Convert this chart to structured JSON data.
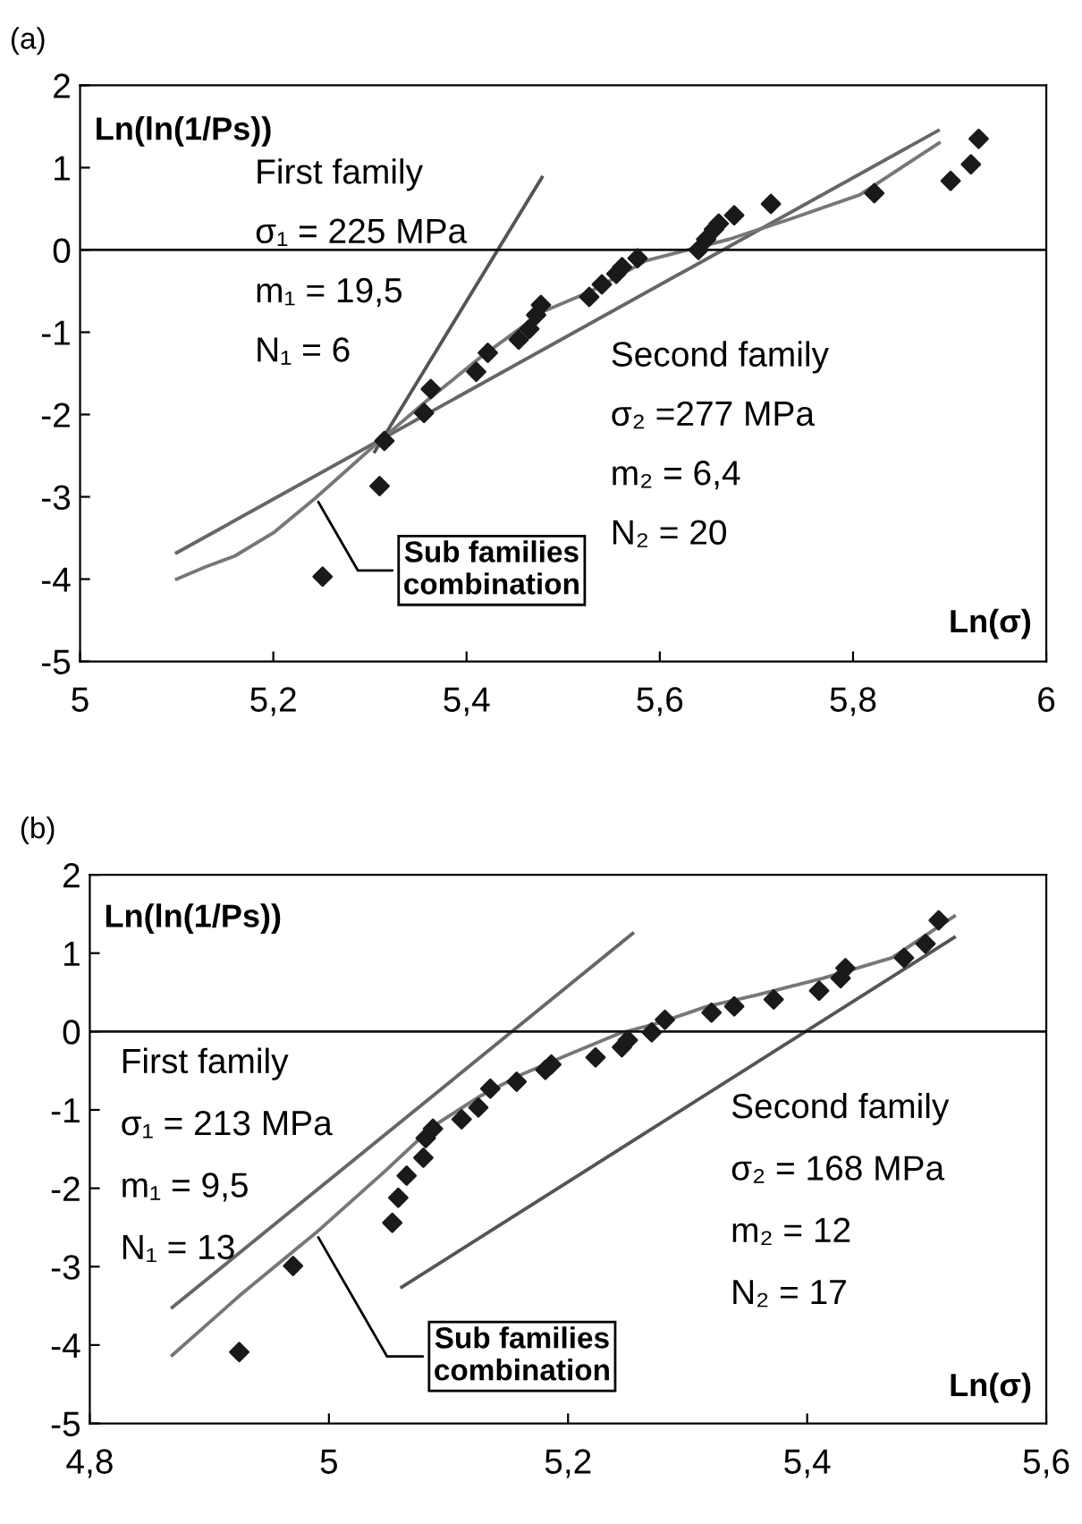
{
  "chart_data": [
    {
      "type": "scatter",
      "title": "(a)",
      "xlabel": "Ln(σ)",
      "ylabel": "Ln(ln(1/Ps))",
      "xlim": [
        5,
        6
      ],
      "xticks": [
        5,
        {
          "value": 5.2,
          "label": "5,2"
        },
        {
          "value": 5.4,
          "label": "5,4"
        },
        {
          "value": 5.6,
          "label": "5,6"
        },
        {
          "value": 5.8,
          "label": "5,8"
        },
        6
      ],
      "ylim": [
        -5,
        2
      ],
      "yticks": [
        -5,
        -4,
        -3,
        -2,
        -1,
        0,
        1,
        2
      ],
      "grid": false,
      "legend": false,
      "ref_lines": [
        {
          "axis": "y",
          "value": 0,
          "color": "#111111"
        }
      ],
      "series": [
        {
          "type": "line",
          "color": "#555555",
          "x": [
            5.305,
            5.478
          ],
          "values": [
            -2.45,
            0.88
          ]
        },
        {
          "type": "line",
          "color": "#666666",
          "x": [
            5.1,
            5.888
          ],
          "values": [
            -3.68,
            1.45
          ]
        },
        {
          "type": "line",
          "color": "#777777",
          "x": [
            5.1,
            5.13,
            5.16,
            5.201,
            5.244,
            5.312,
            5.358,
            5.415,
            5.479,
            5.529,
            5.586,
            5.629,
            5.672,
            5.736,
            5.807,
            5.889
          ],
          "values": [
            -4.0,
            -3.85,
            -3.72,
            -3.43,
            -3.01,
            -2.3,
            -1.84,
            -1.3,
            -0.75,
            -0.5,
            -0.13,
            0,
            0.13,
            0.38,
            0.67,
            1.3
          ]
        },
        {
          "marker": "diamond",
          "color": "#1a1a1a",
          "x": [
            5.251,
            5.31,
            5.315,
            5.356,
            5.363,
            5.41,
            5.422,
            5.454,
            5.465,
            5.472,
            5.477,
            5.527,
            5.54,
            5.555,
            5.561,
            5.577,
            5.64,
            5.648,
            5.656,
            5.661,
            5.677,
            5.715,
            5.822,
            5.901,
            5.922,
            5.93
          ],
          "values": [
            -3.97,
            -2.87,
            -2.32,
            -1.98,
            -1.69,
            -1.48,
            -1.25,
            -1.09,
            -0.96,
            -0.79,
            -0.67,
            -0.57,
            -0.42,
            -0.29,
            -0.21,
            -0.1,
            0.0,
            0.13,
            0.25,
            0.32,
            0.42,
            0.56,
            0.69,
            0.84,
            1.04,
            1.35
          ]
        }
      ],
      "annotations": [
        "First family",
        "σ₁ = 225 MPa",
        "m₁ = 19,5",
        "N₁ = 6",
        "Second family",
        "σ₂ =277 MPa",
        "m₂ = 6,4",
        "N₂ = 20",
        {
          "text": "Sub families\ncombination",
          "x": 5.244,
          "y": -3.01
        }
      ]
    },
    {
      "type": "scatter",
      "title": "(b)",
      "xlabel": "Ln(σ)",
      "ylabel": "Ln(ln(1/Ps))",
      "xlim": [
        4.8,
        5.6
      ],
      "xticks": [
        {
          "value": 4.8,
          "label": "4,8"
        },
        5,
        {
          "value": 5.2,
          "label": "5,2"
        },
        {
          "value": 5.4,
          "label": "5,4"
        },
        {
          "value": 5.6,
          "label": "5,6"
        }
      ],
      "ylim": [
        -5,
        2
      ],
      "yticks": [
        -5,
        -4,
        -3,
        -2,
        -1,
        0,
        1,
        2
      ],
      "grid": false,
      "legend": false,
      "ref_lines": [
        {
          "axis": "y",
          "value": 0,
          "color": "#111111"
        }
      ],
      "series": [
        {
          "type": "line",
          "color": "#666666",
          "x": [
            4.869,
            5.254
          ],
          "values": [
            -3.52,
            1.25
          ]
        },
        {
          "type": "line",
          "color": "#555555",
          "x": [
            5.061,
            5.523
          ],
          "values": [
            -3.26,
            1.2
          ]
        },
        {
          "type": "line",
          "color": "#777777",
          "x": [
            4.869,
            4.926,
            4.989,
            5.047,
            5.087,
            5.127,
            5.161,
            5.201,
            5.242,
            5.276,
            5.316,
            5.356,
            5.413,
            5.471,
            5.523
          ],
          "values": [
            -4.13,
            -3.36,
            -2.57,
            -1.78,
            -1.21,
            -0.82,
            -0.55,
            -0.29,
            -0.03,
            0.11,
            0.32,
            0.46,
            0.68,
            0.94,
            1.47
          ]
        },
        {
          "marker": "diamond",
          "color": "#1a1a1a",
          "x": [
            4.925,
            4.97,
            5.053,
            5.058,
            5.065,
            5.079,
            5.081,
            5.087,
            5.111,
            5.125,
            5.135,
            5.157,
            5.181,
            5.186,
            5.223,
            5.245,
            5.25,
            5.27,
            5.281,
            5.32,
            5.339,
            5.372,
            5.41,
            5.428,
            5.432,
            5.481,
            5.499,
            5.51
          ],
          "values": [
            -4.09,
            -2.99,
            -2.44,
            -2.12,
            -1.84,
            -1.61,
            -1.36,
            -1.24,
            -1.12,
            -0.97,
            -0.73,
            -0.64,
            -0.49,
            -0.42,
            -0.33,
            -0.2,
            -0.11,
            -0.01,
            0.15,
            0.24,
            0.32,
            0.41,
            0.52,
            0.68,
            0.81,
            0.94,
            1.12,
            1.42
          ]
        }
      ],
      "annotations": [
        "First family",
        "σ₁ = 213 MPa",
        "m₁ = 9,5",
        "N₁ = 13",
        "Second family",
        "σ₂ = 168 MPa",
        "m₂ = 12",
        "N₂ = 17",
        {
          "text": "Sub families\ncombination",
          "x": 4.989,
          "y": -2.57
        }
      ]
    }
  ]
}
